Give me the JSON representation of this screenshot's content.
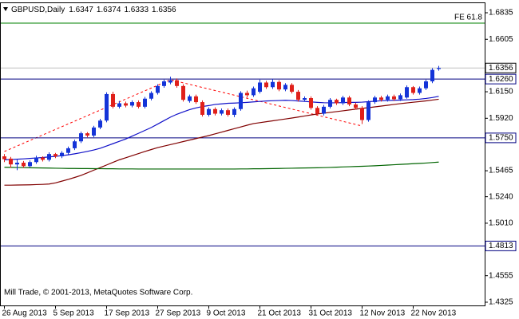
{
  "chart_data": {
    "type": "candlestick",
    "title": "GBPUSD,Daily",
    "footer": "Mill Trade, © 2001-2013, MetaQuotes Software Corp.",
    "categories": [
      "26 Aug 2013",
      null,
      null,
      null,
      null,
      null,
      null,
      null,
      "5 Sep 2013",
      null,
      null,
      null,
      null,
      null,
      null,
      null,
      "17 Sep 2013",
      null,
      null,
      null,
      null,
      null,
      null,
      null,
      "27 Sep 2013",
      null,
      null,
      null,
      null,
      null,
      null,
      null,
      "9 Oct 2013",
      null,
      null,
      null,
      null,
      null,
      null,
      null,
      "21 Oct 2013",
      null,
      null,
      null,
      null,
      null,
      null,
      null,
      "31 Oct 2013",
      null,
      null,
      null,
      null,
      null,
      null,
      null,
      "12 Nov 2013",
      null,
      null,
      null,
      null,
      null,
      null,
      null,
      "22 Nov 2013",
      null,
      null,
      null,
      null
    ],
    "open": [
      1.559,
      1.557,
      1.552,
      1.5535,
      1.5505,
      1.554,
      1.558,
      1.556,
      1.561,
      1.559,
      1.562,
      1.566,
      1.572,
      1.579,
      1.577,
      1.584,
      1.59,
      1.613,
      1.602,
      1.605,
      1.603,
      1.606,
      1.602,
      1.609,
      1.614,
      1.62,
      1.623,
      1.625,
      1.62,
      1.607,
      1.611,
      1.606,
      1.595,
      1.6,
      1.596,
      1.599,
      1.595,
      1.6,
      1.614,
      1.612,
      1.615,
      1.623,
      1.619,
      1.6235,
      1.617,
      1.621,
      1.615,
      1.608,
      1.6095,
      1.601,
      1.596,
      1.602,
      1.608,
      1.605,
      1.61,
      1.604,
      1.601,
      1.5905,
      1.606,
      1.61,
      1.608,
      1.611,
      1.6085,
      1.61,
      1.619,
      1.614,
      1.618,
      1.624,
      1.6347
    ],
    "high": [
      1.561,
      1.5585,
      1.556,
      1.555,
      1.5555,
      1.5595,
      1.559,
      1.5625,
      1.562,
      1.5635,
      1.5675,
      1.5735,
      1.5805,
      1.58,
      1.5855,
      1.5915,
      1.6145,
      1.615,
      1.607,
      1.6065,
      1.6075,
      1.6075,
      1.6105,
      1.6155,
      1.6215,
      1.6255,
      1.628,
      1.6265,
      1.6215,
      1.6125,
      1.6125,
      1.6075,
      1.6015,
      1.6015,
      1.6005,
      1.6005,
      1.6015,
      1.6155,
      1.616,
      1.6195,
      1.6255,
      1.6245,
      1.626,
      1.625,
      1.6225,
      1.6225,
      1.6165,
      1.611,
      1.611,
      1.6025,
      1.6035,
      1.6095,
      1.609,
      1.6115,
      1.6115,
      1.6055,
      1.6025,
      1.6075,
      1.6115,
      1.6115,
      1.6125,
      1.6125,
      1.6135,
      1.6205,
      1.62,
      1.6195,
      1.6255,
      1.6355,
      1.6374
    ],
    "low": [
      1.554,
      1.549,
      1.547,
      1.549,
      1.5495,
      1.5525,
      1.5545,
      1.5545,
      1.5575,
      1.5575,
      1.5605,
      1.5645,
      1.5705,
      1.5755,
      1.5755,
      1.5825,
      1.5885,
      1.6005,
      1.6005,
      1.6015,
      1.6015,
      1.6005,
      1.6005,
      1.6075,
      1.6125,
      1.6185,
      1.6215,
      1.6185,
      1.6065,
      1.6055,
      1.6045,
      1.5935,
      1.5935,
      1.5945,
      1.5945,
      1.5935,
      1.593,
      1.5985,
      1.61,
      1.6105,
      1.6135,
      1.6175,
      1.6175,
      1.6155,
      1.6155,
      1.6135,
      1.6065,
      1.6065,
      1.5995,
      1.5945,
      1.5945,
      1.6005,
      1.6035,
      1.6035,
      1.6025,
      1.5995,
      1.587,
      1.589,
      1.6045,
      1.6065,
      1.6065,
      1.607,
      1.607,
      1.609,
      1.6125,
      1.6125,
      1.6165,
      1.6225,
      1.6333
    ],
    "close": [
      1.5565,
      1.552,
      1.5535,
      1.5505,
      1.554,
      1.558,
      1.556,
      1.561,
      1.559,
      1.562,
      1.566,
      1.572,
      1.579,
      1.577,
      1.584,
      1.59,
      1.613,
      1.602,
      1.605,
      1.603,
      1.606,
      1.602,
      1.609,
      1.614,
      1.62,
      1.624,
      1.625,
      1.62,
      1.608,
      1.611,
      1.606,
      1.595,
      1.6,
      1.596,
      1.599,
      1.595,
      1.6,
      1.614,
      1.612,
      1.618,
      1.623,
      1.619,
      1.6235,
      1.617,
      1.621,
      1.615,
      1.608,
      1.6095,
      1.601,
      1.596,
      1.602,
      1.608,
      1.605,
      1.61,
      1.604,
      1.601,
      1.5905,
      1.606,
      1.61,
      1.608,
      1.611,
      1.6085,
      1.612,
      1.619,
      1.614,
      1.618,
      1.624,
      1.634,
      1.6356
    ],
    "up_color": "#1434d8",
    "down_color": "#e0201a",
    "series": [
      {
        "color": "#1010c8",
        "values": [
          1.556,
          1.5562,
          1.5565,
          1.5568,
          1.5572,
          1.5576,
          1.558,
          1.5585,
          1.559,
          1.5596,
          1.5603,
          1.5612,
          1.5622,
          1.5633,
          1.5645,
          1.566,
          1.568,
          1.57,
          1.572,
          1.574,
          1.5765,
          1.579,
          1.5815,
          1.584,
          1.587,
          1.59,
          1.593,
          1.5955,
          1.5975,
          1.5995,
          1.601,
          1.6022,
          1.603,
          1.604,
          1.6045,
          1.605,
          1.6052,
          1.6055,
          1.6058,
          1.6062,
          1.6066,
          1.607,
          1.6072,
          1.6074,
          1.6076,
          1.6074,
          1.607,
          1.6066,
          1.6062,
          1.6058,
          1.6055,
          1.6054,
          1.6054,
          1.6056,
          1.6058,
          1.6058,
          1.606,
          1.6064,
          1.6068,
          1.6072,
          1.6074,
          1.6076,
          1.6078,
          1.608,
          1.6082,
          1.6086,
          1.6092,
          1.61,
          1.611
        ]
      },
      {
        "color": "#800000",
        "values": [
          1.534,
          1.534,
          1.5341,
          1.5342,
          1.5343,
          1.5345,
          1.5347,
          1.535,
          1.536,
          1.5375,
          1.539,
          1.5407,
          1.5425,
          1.5447,
          1.547,
          1.5492,
          1.5515,
          1.5538,
          1.556,
          1.5578,
          1.5596,
          1.5614,
          1.5632,
          1.5649,
          1.5666,
          1.5679,
          1.5692,
          1.5705,
          1.5718,
          1.5731,
          1.5744,
          1.5757,
          1.577,
          1.5785,
          1.58,
          1.5815,
          1.583,
          1.5845,
          1.586,
          1.5874,
          1.5882,
          1.589,
          1.5898,
          1.5906,
          1.5914,
          1.5922,
          1.5931,
          1.594,
          1.5949,
          1.5957,
          1.5964,
          1.5971,
          1.5978,
          1.5985,
          1.5992,
          1.5999,
          1.6006,
          1.6012,
          1.6019,
          1.6026,
          1.6033,
          1.604,
          1.6047,
          1.6053,
          1.6059,
          1.6065,
          1.6071,
          1.6078,
          1.6085
        ]
      },
      {
        "color": "#006400",
        "values": [
          1.5495,
          1.5494,
          1.5493,
          1.5492,
          1.5491,
          1.549,
          1.5489,
          1.5488,
          1.5487,
          1.5486,
          1.5485,
          1.5485,
          1.5484,
          1.5484,
          1.5483,
          1.5483,
          1.5482,
          1.5482,
          1.5481,
          1.5481,
          1.5481,
          1.548,
          1.548,
          1.548,
          1.548,
          1.548,
          1.548,
          1.548,
          1.548,
          1.548,
          1.548,
          1.548,
          1.548,
          1.548,
          1.548,
          1.548,
          1.548,
          1.5481,
          1.5481,
          1.5482,
          1.5482,
          1.5483,
          1.5484,
          1.5485,
          1.5486,
          1.5487,
          1.5488,
          1.5489,
          1.549,
          1.5491,
          1.5492,
          1.5494,
          1.5496,
          1.5498,
          1.55,
          1.5502,
          1.5504,
          1.5506,
          1.5508,
          1.5511,
          1.5514,
          1.5517,
          1.552,
          1.5523,
          1.5526,
          1.5529,
          1.5532,
          1.5536,
          1.554
        ]
      }
    ],
    "ylim": [
      1.4297,
      1.6918
    ],
    "yticks": [
      1.6835,
      1.6605,
      {
        "value": 1.615,
        "label": "1.6150"
      },
      {
        "value": 1.592,
        "label": "1.5920"
      },
      1.5465,
      {
        "value": 1.524,
        "label": "1.5240"
      },
      {
        "value": 1.501,
        "label": "1.5010"
      },
      1.4555,
      1.4325
    ],
    "levels": [
      {
        "value": 1.626,
        "label": "1.6260"
      },
      {
        "value": 1.575,
        "label": "1.5750"
      },
      1.4813
    ],
    "level_color": "#000080",
    "current_price_color": "#c0c0c0",
    "fibo": {
      "label": "FE 61.8",
      "level": 1.6745,
      "color": "#008000",
      "line_color": "#ff0000",
      "x": [
        0,
        26,
        56
      ],
      "y": [
        1.5632,
        1.6254,
        1.5853
      ]
    }
  }
}
